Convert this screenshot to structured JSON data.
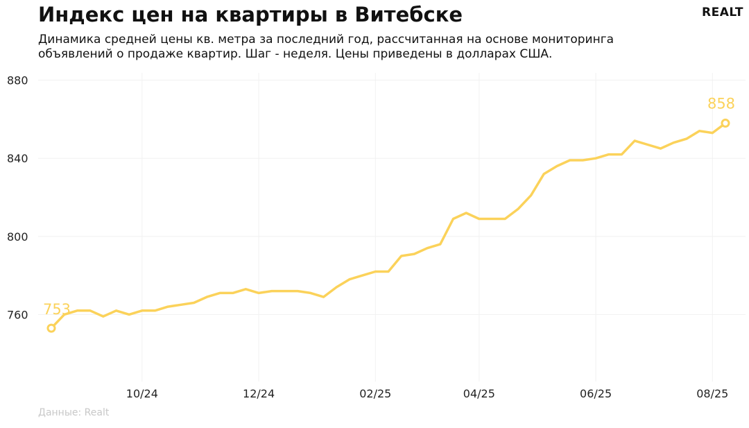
{
  "title": "Индекс цен на квартиры в Витебске",
  "subtitle": "Динамика средней цены кв. метра за последний год, рассчитанная на основе мониторинга объявлений о продаже квартир. Шаг - неделя. Цены приведены в долларах США.",
  "logo": "REALT",
  "source": "Данные: Realt",
  "chart_data": {
    "type": "line",
    "xlabel": "",
    "ylabel": "",
    "ylim": [
      720,
      882
    ],
    "yticks": [
      760,
      800,
      840,
      880
    ],
    "xticks": [
      "10/24",
      "12/24",
      "02/25",
      "04/25",
      "06/25",
      "08/25"
    ],
    "xtick_week_index": [
      7,
      16,
      25,
      33,
      42,
      51
    ],
    "grid": true,
    "color": "#FBD25A",
    "start_label": "753",
    "end_label": "858",
    "series": [
      {
        "values": [
          753,
          760,
          762,
          762,
          759,
          762,
          760,
          762,
          762,
          764,
          765,
          766,
          769,
          771,
          771,
          773,
          771,
          772,
          772,
          772,
          771,
          769,
          774,
          778,
          780,
          782,
          782,
          790,
          791,
          794,
          796,
          809,
          812,
          809,
          809,
          809,
          814,
          821,
          832,
          836,
          839,
          839,
          840,
          842,
          842,
          849,
          847,
          845,
          848,
          850,
          854,
          853,
          858
        ]
      }
    ]
  }
}
